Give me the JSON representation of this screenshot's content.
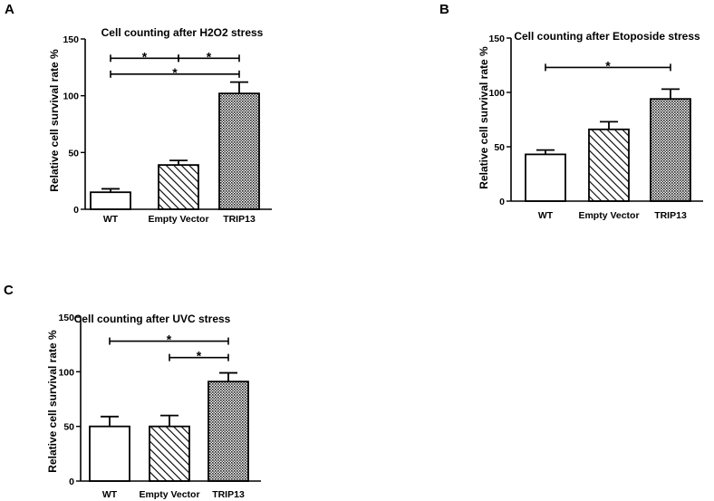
{
  "chart_data": [
    {
      "type": "bar",
      "panel": "A",
      "title": "Cell counting after H2O2 stress",
      "ylabel": "Relative cell survival rate %",
      "xlabel": "",
      "categories": [
        "WT",
        "Empty Vector",
        "TRIP13"
      ],
      "values": [
        15,
        39,
        102
      ],
      "errors": [
        3,
        4,
        10
      ],
      "patterns": [
        "none",
        "diagonal",
        "crosshatch"
      ],
      "ylim": [
        0,
        150
      ],
      "yticks": [
        "0",
        "50",
        "100",
        "150"
      ],
      "significance": [
        {
          "from": 0,
          "to": 1,
          "y": 133,
          "label": "*"
        },
        {
          "from": 1,
          "to": 2,
          "y": 133,
          "label": "*"
        },
        {
          "from": 0,
          "to": 2,
          "y": 119,
          "label": "*"
        }
      ]
    },
    {
      "type": "bar",
      "panel": "B",
      "title": "Cell counting after Etoposide stress",
      "ylabel": "Relative cell survival rate %",
      "xlabel": "",
      "categories": [
        "WT",
        "Empty Vector",
        "TRIP13"
      ],
      "values": [
        43,
        66,
        94
      ],
      "errors": [
        4,
        7,
        9
      ],
      "patterns": [
        "none",
        "diagonal",
        "crosshatch"
      ],
      "ylim": [
        0,
        150
      ],
      "yticks": [
        "0",
        "50",
        "100",
        "150"
      ],
      "significance": [
        {
          "from": 0,
          "to": 2,
          "y": 123,
          "label": "*"
        }
      ]
    },
    {
      "type": "bar",
      "panel": "C",
      "title": "Cell counting after UVC stress",
      "ylabel": "Relative cell survival rate %",
      "xlabel": "",
      "categories": [
        "WT",
        "Empty Vector",
        "TRIP13"
      ],
      "values": [
        50,
        50,
        91
      ],
      "errors": [
        9,
        10,
        8
      ],
      "patterns": [
        "none",
        "diagonal",
        "crosshatch"
      ],
      "ylim": [
        0,
        150
      ],
      "yticks": [
        "0",
        "50",
        "100",
        "150"
      ],
      "significance": [
        {
          "from": 0,
          "to": 2,
          "y": 128,
          "label": "*"
        },
        {
          "from": 1,
          "to": 2,
          "y": 113,
          "label": "*"
        }
      ]
    }
  ]
}
